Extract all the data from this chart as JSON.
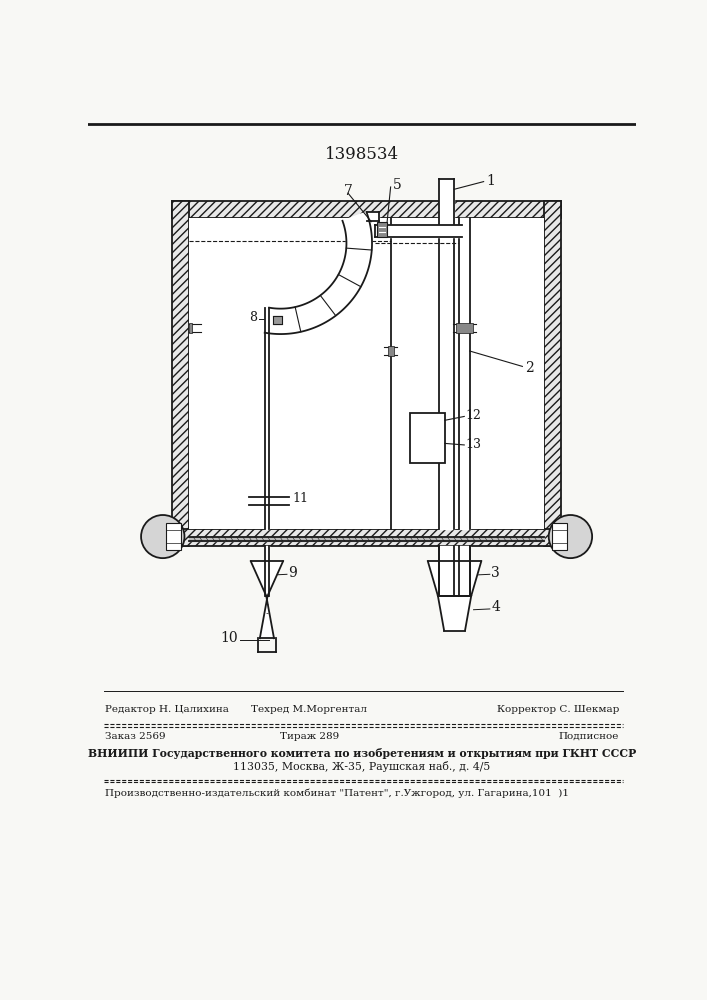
{
  "patent_number": "1398534",
  "bg_color": "#f8f8f5",
  "line_color": "#1a1a1a",
  "footer_line1_left": "Редактор Н. Цалихина",
  "footer_line1_mid": "Техред М.Моргентал",
  "footer_line1_right": "Корректор С. Шекмар",
  "footer_line2_left": "Заказ 2569",
  "footer_line2_mid": "Тираж 289",
  "footer_line2_right": "Подписное",
  "footer_line3": "ВНИИПИ Государственного комитета по изобретениям и открытиям при ГКНТ СССР",
  "footer_line4": "113035, Москва, Ж-35, Раушская наб., д. 4/5",
  "footer_line5": "Производственно-издательский комбинат \"Патент\", г.Ужгород, ул. Гагарина,101  )1"
}
